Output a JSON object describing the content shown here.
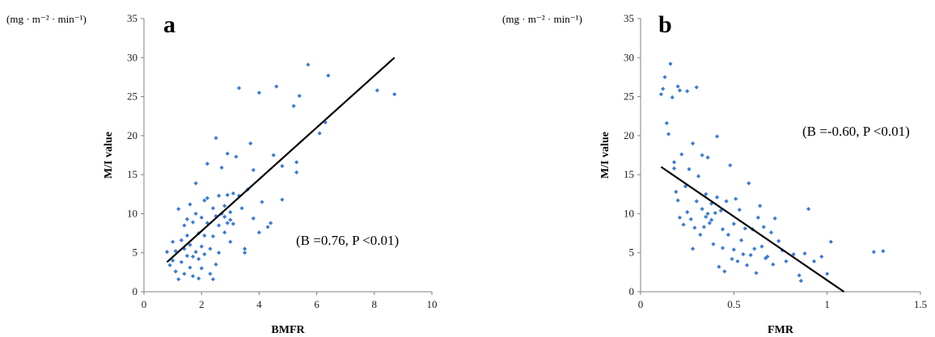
{
  "chart_data": [
    {
      "type": "scatter",
      "panel_label": "a",
      "unit_label": "(mg · m⁻² · min⁻¹)",
      "xlabel": "BMFR",
      "ylabel": "M/I value",
      "xlim": [
        0,
        10
      ],
      "ylim": [
        0,
        35
      ],
      "xticks": [
        0,
        2,
        4,
        6,
        8,
        10
      ],
      "xtick_labels": [
        "0",
        "2",
        "4",
        "6",
        "8",
        "10"
      ],
      "yticks": [
        0,
        5,
        10,
        15,
        20,
        25,
        30,
        35
      ],
      "ytick_labels": [
        "0",
        "5",
        "10",
        "15",
        "20",
        "25",
        "30",
        "35"
      ],
      "annotation": "(B =0.76, P <0.01)",
      "grid": false,
      "point_color": "#3a7bd5",
      "trendline": {
        "x": [
          0.8,
          8.7
        ],
        "y": [
          3.8,
          30.0
        ]
      },
      "points": [
        [
          0.8,
          5.1
        ],
        [
          0.9,
          3.4
        ],
        [
          1.0,
          6.4
        ],
        [
          1.0,
          4.0
        ],
        [
          1.1,
          2.6
        ],
        [
          1.1,
          5.2
        ],
        [
          1.2,
          1.6
        ],
        [
          1.2,
          10.6
        ],
        [
          1.3,
          6.6
        ],
        [
          1.3,
          3.8
        ],
        [
          1.4,
          8.5
        ],
        [
          1.4,
          5.5
        ],
        [
          1.4,
          2.3
        ],
        [
          1.5,
          9.3
        ],
        [
          1.5,
          4.6
        ],
        [
          1.5,
          7.2
        ],
        [
          1.6,
          3.1
        ],
        [
          1.6,
          11.2
        ],
        [
          1.6,
          6.0
        ],
        [
          1.7,
          4.5
        ],
        [
          1.7,
          8.9
        ],
        [
          1.7,
          2.0
        ],
        [
          1.8,
          13.9
        ],
        [
          1.8,
          5.1
        ],
        [
          1.8,
          10.0
        ],
        [
          1.9,
          4.2
        ],
        [
          1.9,
          7.5
        ],
        [
          1.9,
          1.7
        ],
        [
          2.0,
          9.5
        ],
        [
          2.0,
          5.8
        ],
        [
          2.0,
          3.0
        ],
        [
          2.1,
          11.7
        ],
        [
          2.1,
          7.2
        ],
        [
          2.1,
          4.8
        ],
        [
          2.2,
          8.8
        ],
        [
          2.2,
          12.0
        ],
        [
          2.2,
          16.4
        ],
        [
          2.3,
          5.5
        ],
        [
          2.3,
          2.3
        ],
        [
          2.4,
          10.7
        ],
        [
          2.4,
          7.1
        ],
        [
          2.4,
          1.6
        ],
        [
          2.5,
          19.7
        ],
        [
          2.5,
          9.7
        ],
        [
          2.5,
          3.5
        ],
        [
          2.6,
          12.3
        ],
        [
          2.6,
          8.5
        ],
        [
          2.6,
          5.0
        ],
        [
          2.7,
          15.9
        ],
        [
          2.7,
          10.0
        ],
        [
          2.8,
          11.0
        ],
        [
          2.8,
          7.6
        ],
        [
          2.8,
          9.6
        ],
        [
          2.9,
          12.4
        ],
        [
          2.9,
          17.7
        ],
        [
          2.9,
          8.8
        ],
        [
          3.0,
          10.2
        ],
        [
          3.0,
          9.2
        ],
        [
          3.0,
          6.4
        ],
        [
          3.1,
          12.6
        ],
        [
          3.1,
          8.7
        ],
        [
          3.2,
          17.3
        ],
        [
          3.3,
          26.1
        ],
        [
          3.3,
          12.3
        ],
        [
          3.4,
          10.7
        ],
        [
          3.5,
          5.5
        ],
        [
          3.5,
          5.0
        ],
        [
          3.6,
          13.1
        ],
        [
          3.7,
          19.0
        ],
        [
          3.8,
          15.6
        ],
        [
          3.8,
          9.4
        ],
        [
          4.0,
          25.5
        ],
        [
          4.0,
          7.6
        ],
        [
          4.1,
          11.5
        ],
        [
          4.3,
          8.3
        ],
        [
          4.4,
          8.8
        ],
        [
          4.5,
          17.5
        ],
        [
          4.6,
          26.3
        ],
        [
          4.8,
          16.1
        ],
        [
          4.8,
          11.8
        ],
        [
          5.2,
          23.8
        ],
        [
          5.3,
          16.6
        ],
        [
          5.3,
          15.3
        ],
        [
          5.4,
          25.1
        ],
        [
          5.7,
          29.1
        ],
        [
          6.1,
          20.3
        ],
        [
          6.3,
          21.7
        ],
        [
          6.4,
          27.7
        ],
        [
          8.1,
          25.8
        ],
        [
          8.7,
          25.3
        ]
      ]
    },
    {
      "type": "scatter",
      "panel_label": "b",
      "unit_label": "(mg · m⁻² · min⁻¹)",
      "xlabel": "FMR",
      "ylabel": "M/I value",
      "xlim": [
        0,
        1.5
      ],
      "ylim": [
        0,
        35
      ],
      "xticks": [
        0,
        0.5,
        1,
        1.5
      ],
      "xtick_labels": [
        "0",
        "0.5",
        "1",
        "1.5"
      ],
      "yticks": [
        0,
        5,
        10,
        15,
        20,
        25,
        30,
        35
      ],
      "ytick_labels": [
        "0",
        "5",
        "10",
        "15",
        "20",
        "25",
        "30",
        "35"
      ],
      "annotation": "(B =-0.60, P <0.01)",
      "grid": false,
      "point_color": "#3a7bd5",
      "trendline": {
        "x": [
          0.11,
          1.09
        ],
        "y": [
          16.0,
          0.0
        ]
      },
      "points": [
        [
          0.11,
          25.3
        ],
        [
          0.12,
          26.0
        ],
        [
          0.13,
          27.5
        ],
        [
          0.14,
          21.6
        ],
        [
          0.15,
          20.2
        ],
        [
          0.16,
          29.2
        ],
        [
          0.17,
          24.9
        ],
        [
          0.18,
          15.8
        ],
        [
          0.18,
          16.6
        ],
        [
          0.19,
          12.8
        ],
        [
          0.2,
          26.3
        ],
        [
          0.2,
          11.7
        ],
        [
          0.21,
          25.8
        ],
        [
          0.21,
          9.5
        ],
        [
          0.22,
          17.6
        ],
        [
          0.23,
          8.6
        ],
        [
          0.24,
          13.5
        ],
        [
          0.25,
          25.7
        ],
        [
          0.25,
          10.2
        ],
        [
          0.26,
          15.7
        ],
        [
          0.27,
          9.3
        ],
        [
          0.28,
          5.5
        ],
        [
          0.28,
          19.0
        ],
        [
          0.29,
          8.2
        ],
        [
          0.3,
          26.2
        ],
        [
          0.3,
          11.6
        ],
        [
          0.31,
          14.8
        ],
        [
          0.32,
          7.3
        ],
        [
          0.33,
          10.6
        ],
        [
          0.33,
          17.5
        ],
        [
          0.34,
          8.3
        ],
        [
          0.35,
          9.6
        ],
        [
          0.35,
          12.5
        ],
        [
          0.36,
          17.2
        ],
        [
          0.36,
          10.0
        ],
        [
          0.37,
          8.8
        ],
        [
          0.38,
          11.3
        ],
        [
          0.38,
          9.2
        ],
        [
          0.39,
          6.1
        ],
        [
          0.4,
          10.1
        ],
        [
          0.41,
          12.1
        ],
        [
          0.41,
          19.9
        ],
        [
          0.42,
          3.2
        ],
        [
          0.43,
          10.4
        ],
        [
          0.44,
          8.0
        ],
        [
          0.44,
          5.6
        ],
        [
          0.45,
          2.6
        ],
        [
          0.46,
          11.6
        ],
        [
          0.47,
          7.3
        ],
        [
          0.48,
          16.2
        ],
        [
          0.49,
          4.2
        ],
        [
          0.5,
          8.7
        ],
        [
          0.5,
          5.4
        ],
        [
          0.51,
          11.9
        ],
        [
          0.52,
          3.9
        ],
        [
          0.53,
          10.5
        ],
        [
          0.54,
          6.6
        ],
        [
          0.55,
          4.8
        ],
        [
          0.56,
          8.1
        ],
        [
          0.57,
          3.4
        ],
        [
          0.58,
          13.9
        ],
        [
          0.59,
          4.7
        ],
        [
          0.6,
          8.0
        ],
        [
          0.61,
          5.5
        ],
        [
          0.62,
          2.4
        ],
        [
          0.63,
          9.5
        ],
        [
          0.64,
          11.0
        ],
        [
          0.65,
          5.8
        ],
        [
          0.66,
          8.3
        ],
        [
          0.67,
          4.3
        ],
        [
          0.68,
          4.5
        ],
        [
          0.7,
          7.6
        ],
        [
          0.71,
          3.5
        ],
        [
          0.72,
          9.4
        ],
        [
          0.74,
          6.5
        ],
        [
          0.76,
          5.3
        ],
        [
          0.78,
          3.9
        ],
        [
          0.82,
          4.8
        ],
        [
          0.85,
          2.1
        ],
        [
          0.86,
          1.4
        ],
        [
          0.88,
          4.9
        ],
        [
          0.9,
          10.6
        ],
        [
          0.93,
          3.9
        ],
        [
          0.97,
          4.5
        ],
        [
          1.0,
          2.3
        ],
        [
          1.02,
          6.4
        ],
        [
          1.25,
          5.1
        ],
        [
          1.3,
          5.2
        ]
      ]
    }
  ]
}
